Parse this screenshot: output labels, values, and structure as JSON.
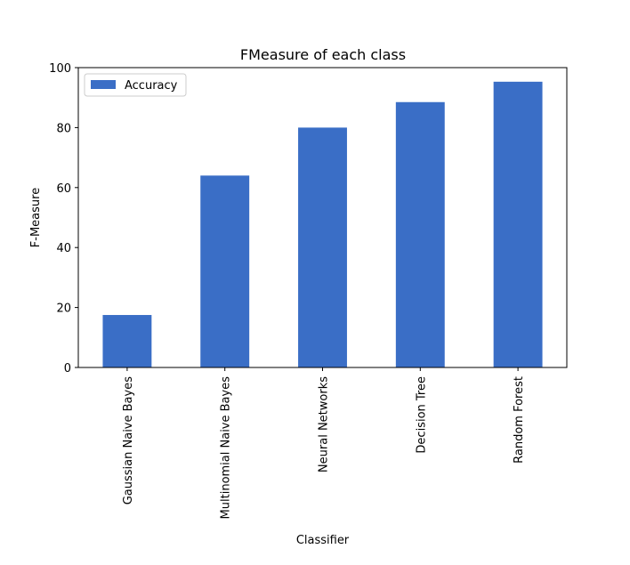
{
  "chart_data": {
    "type": "bar",
    "title": "FMeasure of each class",
    "xlabel": "Classifier",
    "ylabel": "F-Measure",
    "categories": [
      "Gaussian Naive Bayes",
      "Multinomial Naive Bayes",
      "Neural Networks",
      "Decision Tree",
      "Random Forest"
    ],
    "series": [
      {
        "name": "Accuracy",
        "values": [
          17.5,
          64.0,
          80.0,
          88.5,
          95.3
        ]
      }
    ],
    "ylim": [
      0,
      100
    ],
    "yticks": [
      0,
      20,
      40,
      60,
      80,
      100
    ],
    "grid": false,
    "legend": "top-left",
    "colors": {
      "bar": "#3a6ec6",
      "axis": "#000000",
      "legend_border": "#cccccc"
    }
  }
}
